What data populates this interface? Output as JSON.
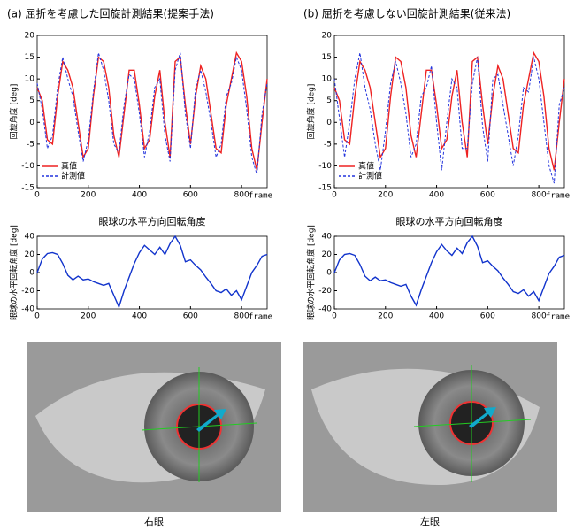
{
  "panels": [
    {
      "title": "(a) 屈折を考慮した回旋計測結果(提案手法)",
      "caption": "右眼"
    },
    {
      "title": "(b) 屈折を考慮しない回旋計測結果(従来法)",
      "caption": "左眼"
    }
  ],
  "chart_data": [
    {
      "type": "line",
      "ylabel": "回旋角度 [deg]",
      "xlabel": "frame",
      "legend": "lower left",
      "grid": false,
      "x": [
        0,
        20,
        40,
        60,
        80,
        100,
        120,
        140,
        160,
        180,
        200,
        220,
        240,
        260,
        280,
        300,
        320,
        340,
        360,
        380,
        400,
        420,
        440,
        460,
        480,
        500,
        520,
        540,
        560,
        580,
        600,
        620,
        640,
        660,
        680,
        700,
        720,
        740,
        760,
        780,
        800,
        820,
        840,
        860,
        880,
        900
      ],
      "xlim": [
        0,
        900
      ],
      "ylim": [
        -15,
        20
      ],
      "xticks": [
        0,
        200,
        400,
        600,
        800
      ],
      "yticks": [
        -15,
        -10,
        -5,
        0,
        5,
        10,
        15,
        20
      ],
      "series": [
        {
          "name": "真値",
          "color": "#ee2222",
          "linestyle": "solid",
          "values": [
            8,
            5,
            -4,
            -5,
            6,
            14,
            12,
            8,
            0,
            -8,
            -6,
            6,
            15,
            14,
            8,
            -3,
            -8,
            2,
            12,
            12,
            4,
            -6,
            -4,
            6,
            12,
            0,
            -8,
            14,
            15,
            4,
            -5,
            6,
            13,
            10,
            2,
            -6,
            -7,
            4,
            10,
            16,
            14,
            6,
            -6,
            -11,
            0,
            10
          ]
        },
        {
          "name": "計測値",
          "color": "#2233dd",
          "linestyle": "dashed",
          "values": [
            9,
            3,
            -6,
            -3,
            8,
            15,
            10,
            6,
            -2,
            -9,
            -4,
            7,
            16,
            12,
            5,
            -5,
            -7,
            4,
            11,
            10,
            2,
            -8,
            -2,
            8,
            10,
            -3,
            -9,
            12,
            16,
            2,
            -6,
            8,
            12,
            7,
            0,
            -8,
            -5,
            6,
            9,
            15,
            12,
            3,
            -8,
            -12,
            2,
            9
          ]
        }
      ]
    },
    {
      "type": "line",
      "title": "眼球の水平方向回転角度",
      "ylabel": "眼球の水平回転角度 [deg]",
      "xlabel": "frame",
      "grid": false,
      "x": [
        0,
        20,
        40,
        60,
        80,
        100,
        120,
        140,
        160,
        180,
        200,
        220,
        240,
        260,
        280,
        300,
        320,
        340,
        360,
        380,
        400,
        420,
        440,
        460,
        480,
        500,
        520,
        540,
        560,
        580,
        600,
        620,
        640,
        660,
        680,
        700,
        720,
        740,
        760,
        780,
        800,
        820,
        840,
        860,
        880,
        900
      ],
      "xlim": [
        0,
        900
      ],
      "ylim": [
        -40,
        40
      ],
      "xticks": [
        0,
        200,
        400,
        600,
        800
      ],
      "yticks": [
        -40,
        -20,
        0,
        20,
        40
      ],
      "series": [
        {
          "color": "#1133cc",
          "linestyle": "solid",
          "values": [
            0,
            15,
            21,
            22,
            20,
            10,
            -3,
            -8,
            -4,
            -8,
            -7,
            -10,
            -12,
            -14,
            -12,
            -25,
            -38,
            -20,
            -5,
            10,
            22,
            30,
            25,
            20,
            28,
            20,
            32,
            40,
            30,
            12,
            14,
            8,
            3,
            -5,
            -12,
            -20,
            -22,
            -18,
            -25,
            -20,
            -30,
            -15,
            0,
            8,
            18,
            20
          ]
        }
      ]
    },
    {
      "type": "line",
      "ylabel": "回旋角度 [deg]",
      "xlabel": "frame",
      "legend": "lower left",
      "grid": false,
      "x": [
        0,
        20,
        40,
        60,
        80,
        100,
        120,
        140,
        160,
        180,
        200,
        220,
        240,
        260,
        280,
        300,
        320,
        340,
        360,
        380,
        400,
        420,
        440,
        460,
        480,
        500,
        520,
        540,
        560,
        580,
        600,
        620,
        640,
        660,
        680,
        700,
        720,
        740,
        760,
        780,
        800,
        820,
        840,
        860,
        880,
        900
      ],
      "xlim": [
        0,
        900
      ],
      "ylim": [
        -15,
        20
      ],
      "xticks": [
        0,
        200,
        400,
        600,
        800
      ],
      "yticks": [
        -15,
        -10,
        -5,
        0,
        5,
        10,
        15,
        20
      ],
      "series": [
        {
          "name": "真値",
          "color": "#ee2222",
          "linestyle": "solid",
          "values": [
            8,
            5,
            -4,
            -5,
            6,
            14,
            12,
            8,
            0,
            -8,
            -6,
            6,
            15,
            14,
            8,
            -3,
            -8,
            2,
            12,
            12,
            4,
            -6,
            -4,
            6,
            12,
            0,
            -8,
            14,
            15,
            4,
            -5,
            6,
            13,
            10,
            2,
            -6,
            -7,
            4,
            10,
            16,
            14,
            6,
            -6,
            -11,
            0,
            10
          ]
        },
        {
          "name": "計測値",
          "color": "#2233dd",
          "linestyle": "dashed",
          "values": [
            10,
            1,
            -8,
            0,
            10,
            16,
            8,
            3,
            -5,
            -11,
            -2,
            9,
            14,
            9,
            2,
            -8,
            -5,
            6,
            8,
            13,
            0,
            -11,
            0,
            10,
            8,
            -6,
            -6,
            9,
            15,
            -1,
            -9,
            10,
            11,
            4,
            -3,
            -10,
            -3,
            8,
            7,
            15,
            10,
            0,
            -10,
            -14,
            4,
            8
          ]
        }
      ]
    },
    {
      "type": "line",
      "title": "眼球の水平方向回転角度",
      "ylabel": "眼球の水平回転角度 [deg]",
      "xlabel": "frame",
      "grid": false,
      "x": [
        0,
        20,
        40,
        60,
        80,
        100,
        120,
        140,
        160,
        180,
        200,
        220,
        240,
        260,
        280,
        300,
        320,
        340,
        360,
        380,
        400,
        420,
        440,
        460,
        480,
        500,
        520,
        540,
        560,
        580,
        600,
        620,
        640,
        660,
        680,
        700,
        720,
        740,
        760,
        780,
        800,
        820,
        840,
        860,
        880,
        900
      ],
      "xlim": [
        0,
        900
      ],
      "ylim": [
        -40,
        40
      ],
      "xticks": [
        0,
        200,
        400,
        600,
        800
      ],
      "yticks": [
        -40,
        -20,
        0,
        20,
        40
      ],
      "series": [
        {
          "color": "#1133cc",
          "linestyle": "solid",
          "values": [
            0,
            14,
            20,
            21,
            19,
            9,
            -4,
            -9,
            -5,
            -9,
            -8,
            -11,
            -13,
            -15,
            -13,
            -26,
            -36,
            -19,
            -4,
            11,
            23,
            31,
            24,
            19,
            27,
            21,
            33,
            40,
            29,
            11,
            13,
            7,
            2,
            -6,
            -13,
            -21,
            -23,
            -19,
            -26,
            -21,
            -31,
            -16,
            -1,
            7,
            17,
            19
          ]
        }
      ]
    }
  ]
}
